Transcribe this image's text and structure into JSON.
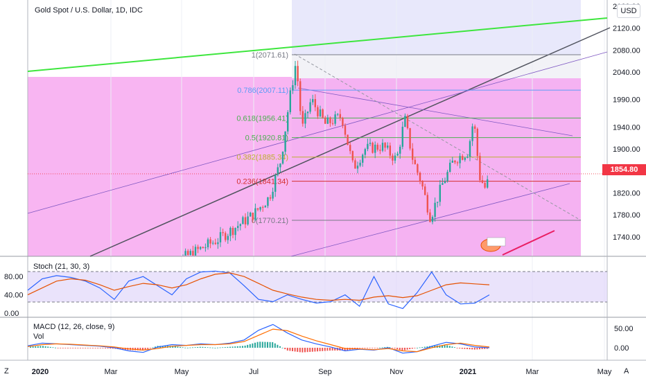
{
  "header": {
    "title": "Gold Spot / U.S. Dollar, 1D, IDC",
    "currency_button": "USD",
    "last_price": "1854.80"
  },
  "colors": {
    "fib_zone": "#f7a8f0",
    "up_candle": "#26a69a",
    "down_candle": "#ef5350",
    "price_badge": "#f23645",
    "channel_green": "#3de63d",
    "stoch_k": "#2962ff",
    "stoch_d": "#e65100",
    "macd": "#2962ff",
    "signal": "#ff6d00"
  },
  "bottom_buttons": {
    "left": "Z",
    "right": "A"
  },
  "chart_data": [
    {
      "type": "line",
      "subtype": "candlestick",
      "title": "Gold Spot / U.S. Dollar, 1D, IDC",
      "y_ticks": [
        "2160.00",
        "2120.00",
        "2080.00",
        "2040.00",
        "1990.00",
        "1940.00",
        "1900.00",
        "1820.00",
        "1780.00",
        "1740.00"
      ],
      "x_ticks": [
        "2020",
        "Mar",
        "May",
        "Jul",
        "Sep",
        "Nov",
        "2021",
        "Mar",
        "May"
      ],
      "ylim": [
        1700,
        2180
      ],
      "last_price": 1854.8,
      "fib_levels": [
        {
          "label": "1(2071.61)",
          "value": 2071.61,
          "color": "#787b86"
        },
        {
          "label": "0.786(2007.11)",
          "value": 2007.11,
          "color": "#5b9cf6"
        },
        {
          "label": "0.618(1956.41)",
          "value": 1956.41,
          "color": "#4caf50"
        },
        {
          "label": "0.5(1920.81)",
          "value": 1920.81,
          "color": "#4caf50"
        },
        {
          "label": "0.382(1885.34)",
          "value": 1885.34,
          "color": "#bdb030"
        },
        {
          "label": "0.236(1841.34)",
          "value": 1841.34,
          "color": "#d32f2f"
        },
        {
          "label": "0(1770.21)",
          "value": 1770.21,
          "color": "#787b86"
        }
      ],
      "close_path": [
        {
          "x": "2020-01",
          "y": 1520
        },
        {
          "x": "2020-03",
          "y": 1560
        },
        {
          "x": "2020-05",
          "y": 1700
        },
        {
          "x": "2020-06",
          "y": 1735
        },
        {
          "x": "2020-07-01",
          "y": 1780
        },
        {
          "x": "2020-07-15",
          "y": 1812
        },
        {
          "x": "2020-07-25",
          "y": 1880
        },
        {
          "x": "2020-08-01",
          "y": 1985
        },
        {
          "x": "2020-08-07",
          "y": 2060
        },
        {
          "x": "2020-08-12",
          "y": 1935
        },
        {
          "x": "2020-08-20",
          "y": 1990
        },
        {
          "x": "2020-09-01",
          "y": 1945
        },
        {
          "x": "2020-09-15",
          "y": 1960
        },
        {
          "x": "2020-09-25",
          "y": 1865
        },
        {
          "x": "2020-10-05",
          "y": 1900
        },
        {
          "x": "2020-10-20",
          "y": 1905
        },
        {
          "x": "2020-11-01",
          "y": 1880
        },
        {
          "x": "2020-11-08",
          "y": 1955
        },
        {
          "x": "2020-11-15",
          "y": 1880
        },
        {
          "x": "2020-11-22",
          "y": 1840
        },
        {
          "x": "2020-11-30",
          "y": 1775
        },
        {
          "x": "2020-12-10",
          "y": 1835
        },
        {
          "x": "2020-12-20",
          "y": 1880
        },
        {
          "x": "2021-01-01",
          "y": 1895
        },
        {
          "x": "2021-01-06",
          "y": 1955
        },
        {
          "x": "2021-01-11",
          "y": 1850
        },
        {
          "x": "2021-01-16",
          "y": 1828
        },
        {
          "x": "2021-01-22",
          "y": 1865
        },
        {
          "x": "2021-01-25",
          "y": 1854.8
        }
      ]
    },
    {
      "type": "line",
      "title": "Stoch (21, 30, 3)",
      "y_ticks": [
        "80.00",
        "40.00",
        "0.00"
      ],
      "ylim": [
        0,
        100
      ],
      "bands": [
        80,
        20
      ],
      "series": [
        {
          "name": "K",
          "values": [
            50,
            75,
            82,
            78,
            70,
            55,
            30,
            70,
            80,
            60,
            40,
            75,
            90,
            92,
            88,
            60,
            30,
            25,
            40,
            30,
            22,
            25,
            40,
            15,
            80,
            20,
            10,
            45,
            90,
            40,
            20,
            22,
            40
          ]
        },
        {
          "name": "D",
          "values": [
            40,
            55,
            70,
            75,
            72,
            62,
            50,
            58,
            65,
            62,
            55,
            62,
            75,
            85,
            88,
            80,
            65,
            50,
            42,
            35,
            30,
            28,
            30,
            28,
            35,
            38,
            34,
            38,
            50,
            62,
            66,
            64,
            62
          ]
        }
      ]
    },
    {
      "type": "line",
      "title": "MACD (12, 26, close, 9)",
      "legend_extra": "Vol",
      "y_ticks": [
        "50.00",
        "0.00"
      ],
      "ylim": [
        -25,
        75
      ],
      "series": [
        {
          "name": "MACD",
          "values": [
            5,
            12,
            10,
            8,
            6,
            4,
            0,
            -8,
            -12,
            2,
            8,
            6,
            10,
            8,
            12,
            20,
            45,
            60,
            38,
            20,
            10,
            2,
            -8,
            -4,
            -6,
            0,
            -14,
            -10,
            4,
            14,
            10,
            2,
            0
          ]
        },
        {
          "name": "Signal",
          "values": [
            3,
            8,
            10,
            9,
            7,
            5,
            2,
            -3,
            -6,
            -2,
            4,
            6,
            8,
            8,
            10,
            16,
            32,
            48,
            44,
            30,
            18,
            8,
            -2,
            -3,
            -5,
            -2,
            -8,
            -10,
            0,
            8,
            12,
            6,
            2
          ]
        }
      ]
    }
  ]
}
